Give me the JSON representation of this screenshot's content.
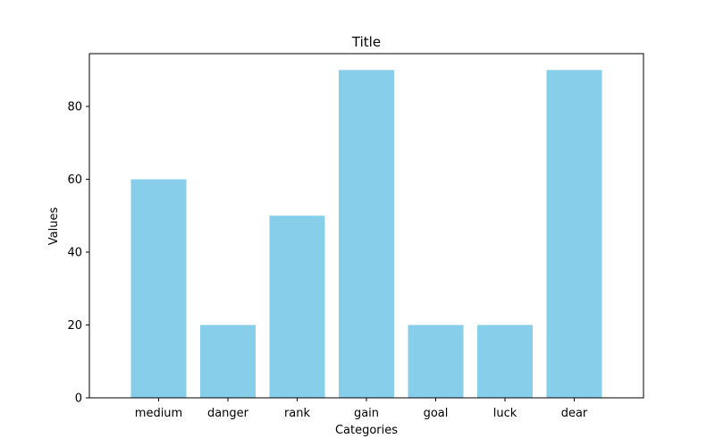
{
  "chart_data": {
    "type": "bar",
    "title": "Title",
    "xlabel": "Categories",
    "ylabel": "Values",
    "categories": [
      "medium",
      "danger",
      "rank",
      "gain",
      "goal",
      "luck",
      "dear"
    ],
    "values": [
      60,
      20,
      50,
      90,
      20,
      20,
      90
    ],
    "ylim": [
      0,
      94.5
    ],
    "yticks": [
      0,
      20,
      40,
      60,
      80
    ],
    "grid": false,
    "colors": {
      "bar": "#87ceeb",
      "axis": "#000000",
      "background": "#ffffff"
    }
  }
}
